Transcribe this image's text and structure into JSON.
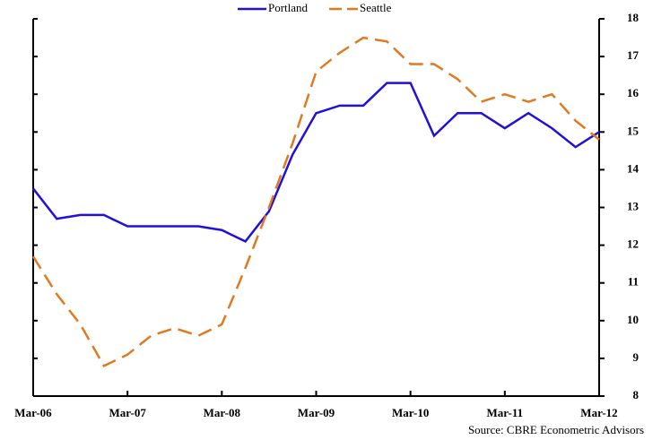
{
  "chart_data": {
    "type": "line",
    "categories": [
      "Mar-06",
      null,
      null,
      null,
      "Mar-07",
      null,
      null,
      null,
      "Mar-08",
      null,
      null,
      null,
      "Mar-09",
      null,
      null,
      null,
      "Mar-10",
      null,
      null,
      null,
      "Mar-11",
      null,
      null,
      null,
      "Mar-12"
    ],
    "series": [
      {
        "name": "Portland",
        "color": "#2010dc",
        "dash": false,
        "values": [
          13.5,
          12.7,
          12.8,
          12.8,
          12.5,
          12.5,
          12.5,
          12.5,
          12.4,
          12.1,
          12.9,
          14.4,
          15.5,
          15.7,
          15.7,
          16.3,
          16.3,
          14.9,
          15.5,
          15.5,
          15.1,
          15.5,
          15.1,
          14.6,
          15.0
        ]
      },
      {
        "name": "Seattle",
        "color": "#e07a1f",
        "dash": true,
        "values": [
          11.7,
          10.7,
          9.9,
          8.8,
          9.1,
          9.6,
          9.8,
          9.6,
          9.9,
          11.4,
          13.0,
          14.7,
          16.6,
          17.1,
          17.5,
          17.4,
          16.8,
          16.8,
          16.4,
          15.8,
          16.0,
          15.8,
          16.0,
          15.3,
          14.8
        ]
      }
    ],
    "ylim": [
      8,
      18
    ],
    "yticks": [
      8,
      9,
      10,
      11,
      12,
      13,
      14,
      15,
      16,
      17,
      18
    ],
    "legend": "top",
    "source": "Source: CBRE Econometric Advisors"
  }
}
